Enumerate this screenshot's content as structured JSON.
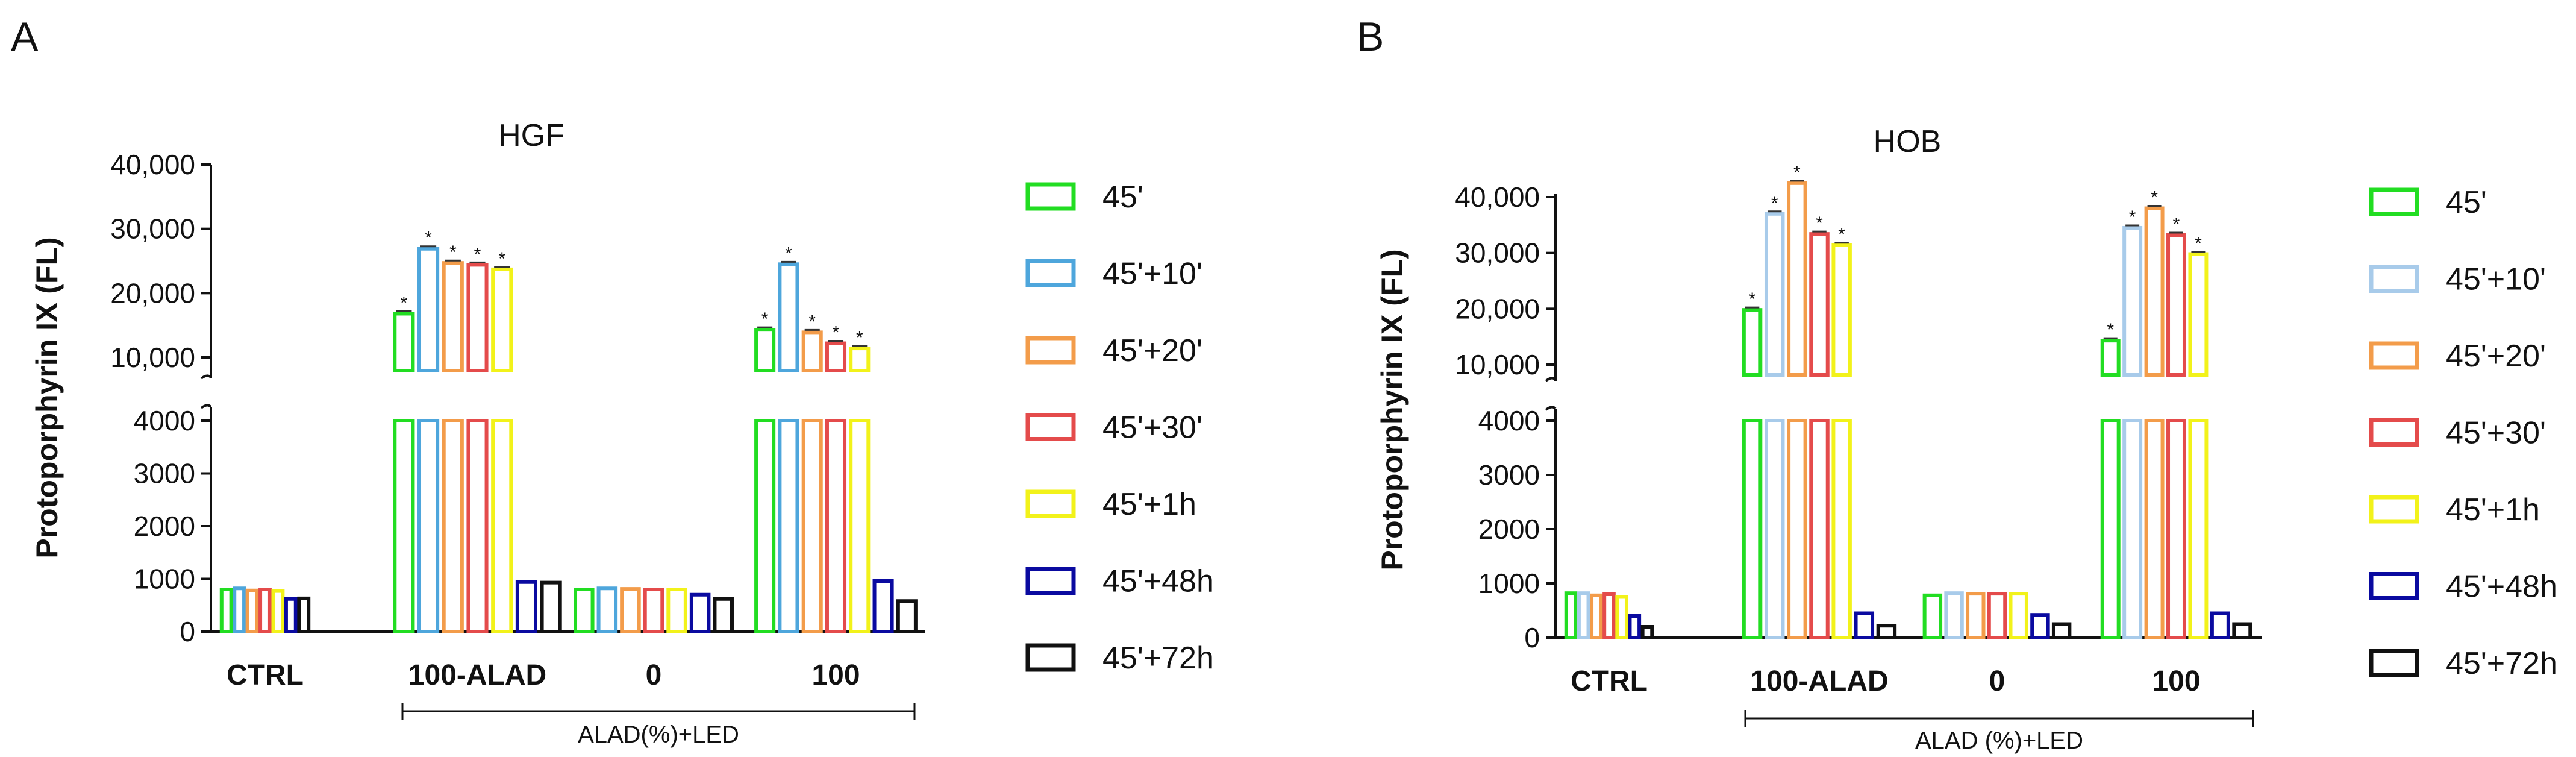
{
  "legend": {
    "items": [
      {
        "label": "45'",
        "color": "#22dd22"
      },
      {
        "label": "45'+10'",
        "color": "#4ea6dc"
      },
      {
        "label": "45'+20'",
        "color": "#f39c4a"
      },
      {
        "label": "45'+30'",
        "color": "#e44b4b"
      },
      {
        "label": "45'+1h",
        "color": "#f2f21a"
      },
      {
        "label": "45'+48h",
        "color": "#0a0aa0"
      },
      {
        "label": "45'+72h",
        "color": "#111111"
      }
    ]
  },
  "chart_data": [
    {
      "panel_label": "A",
      "type": "bar",
      "title": "HGF",
      "ylabel": "Protoporphyrin IX (FL)",
      "xlabel": "",
      "categories": [
        "CTRL",
        "100-ALAD",
        "0",
        "100"
      ],
      "bracket_label": "ALAD(%)+LED",
      "series_colors": [
        "#22dd22",
        "#4ea6dc",
        "#f39c4a",
        "#e44b4b",
        "#f2f21a",
        "#0a0aa0",
        "#111111"
      ],
      "lower_axis": {
        "range": [
          0,
          4000
        ],
        "ticks": [
          0,
          1000,
          2000,
          3000,
          4000
        ],
        "tick_labels": [
          "0",
          "1000",
          "2000",
          "3000",
          "4000"
        ]
      },
      "upper_axis": {
        "range": [
          7000,
          40000
        ],
        "ticks": [
          10000,
          20000,
          30000,
          40000
        ],
        "tick_labels": [
          "10,000",
          "20,000",
          "30,000",
          "40,000"
        ]
      },
      "series": [
        {
          "name": "45'",
          "values": [
            800,
            16800,
            800,
            14300
          ]
        },
        {
          "name": "45'+10'",
          "values": [
            820,
            26900,
            820,
            24500
          ]
        },
        {
          "name": "45'+20'",
          "values": [
            780,
            24700,
            810,
            13900
          ]
        },
        {
          "name": "45'+30'",
          "values": [
            800,
            24400,
            800,
            12200
          ]
        },
        {
          "name": "45'+1h",
          "values": [
            770,
            23700,
            800,
            11400
          ]
        },
        {
          "name": "45'+48h",
          "values": [
            620,
            940,
            700,
            960
          ]
        },
        {
          "name": "45'+72h",
          "values": [
            630,
            930,
            620,
            580
          ]
        }
      ],
      "annotations": {
        "marker": "*",
        "categories": [
          "100-ALAD",
          "100"
        ],
        "series": [
          "45'",
          "45'+10'",
          "45'+20'",
          "45'+30'",
          "45'+1h"
        ]
      }
    },
    {
      "panel_label": "B",
      "type": "bar",
      "title": "HOB",
      "ylabel": "Protoporphyrin IX (FL)",
      "xlabel": "",
      "categories": [
        "CTRL",
        "100-ALAD",
        "0",
        "100"
      ],
      "bracket_label": "ALAD (%)+LED",
      "series_colors": [
        "#22dd22",
        "#a8cbea",
        "#f39c4a",
        "#e44b4b",
        "#f2f21a",
        "#0a0aa0",
        "#111111"
      ],
      "lower_axis": {
        "range": [
          0,
          4000
        ],
        "ticks": [
          0,
          1000,
          2000,
          3000,
          4000
        ],
        "tick_labels": [
          "0",
          "1000",
          "2000",
          "3000",
          "4000"
        ]
      },
      "upper_axis": {
        "range": [
          6000,
          45000
        ],
        "ticks": [
          10000,
          20000,
          30000,
          40000
        ],
        "tick_labels": [
          "10,000",
          "20,000",
          "30,000",
          "40,000"
        ]
      },
      "series": [
        {
          "name": "45'",
          "values": [
            820,
            19800,
            780,
            14300
          ]
        },
        {
          "name": "45'+10'",
          "values": [
            820,
            37000,
            820,
            34500
          ]
        },
        {
          "name": "45'+20'",
          "values": [
            780,
            42500,
            810,
            38000
          ]
        },
        {
          "name": "45'+30'",
          "values": [
            800,
            33400,
            810,
            33200
          ]
        },
        {
          "name": "45'+1h",
          "values": [
            750,
            31400,
            810,
            29800
          ]
        },
        {
          "name": "45'+48h",
          "values": [
            400,
            450,
            420,
            450
          ]
        },
        {
          "name": "45'+72h",
          "values": [
            200,
            220,
            250,
            250
          ]
        }
      ],
      "annotations": {
        "marker": "*",
        "categories": [
          "100-ALAD",
          "100"
        ],
        "series": [
          "45'",
          "45'+10'",
          "45'+20'",
          "45'+30'",
          "45'+1h"
        ]
      }
    }
  ]
}
